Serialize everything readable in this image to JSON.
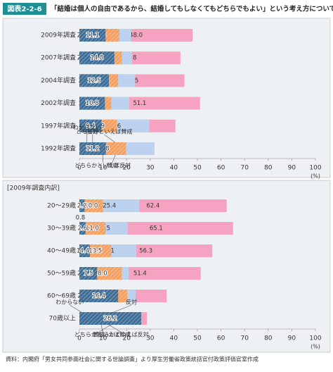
{
  "header": {
    "label": "図表2-2-6",
    "title": "「結婚は個人の自由であるから、結婚してもしなくてもどちらでもよい」という考え方について"
  },
  "source": "資料：内閣府「男女共同参画社会に関する世論調査」より厚生労働省政策統括官付政策評価官室作成",
  "chart_data": [
    {
      "type": "bar",
      "orientation": "horizontal",
      "stacked": true,
      "categories": [
        "2009年調査",
        "2007年調査",
        "2004年調査",
        "2002年調査",
        "1997年調査",
        "1992年調査"
      ],
      "series": [
        {
          "name": "賛成",
          "color": "#f5a3c0",
          "values": [
            48.0,
            42.8,
            44.5,
            51.1,
            40.7,
            30.9
          ],
          "value_labels": [
            "48.0",
            "42.8",
            "44.5",
            "51.1",
            "40.7",
            "30.9"
          ]
        },
        {
          "name": "どちらかといえば賛成",
          "color": "#bcd2ef",
          "values": [
            22.0,
            22.3,
            23.6,
            21.1,
            29.6,
            31.8
          ],
          "value_labels": [
            "22.0",
            "22.3",
            "23.6",
            "21.1",
            "29.6",
            "31.8"
          ]
        },
        {
          "name": "わからない",
          "color": "#7fae5f",
          "values": [
            2.0,
            2.1,
            3.1,
            3.4,
            4.5,
            6.4
          ],
          "value_labels": [
            "2.0",
            "2.1",
            "3.1",
            "3.4",
            "4.5",
            "6.4"
          ]
        },
        {
          "name": "どちらかといえば反対",
          "color": "#f4a063",
          "values": [
            16.9,
            18.0,
            16.4,
            13.5,
            15.9,
            19.8
          ],
          "value_labels": [
            "16.9",
            "18.0",
            "16.4",
            "13.5",
            "15.9",
            "19.8"
          ]
        },
        {
          "name": "反対",
          "color": "#3f6e98",
          "values": [
            11.1,
            14.8,
            12.5,
            10.8,
            9.4,
            11.2
          ],
          "value_labels": [
            "11.1",
            "14.8",
            "12.5",
            "10.8",
            "9.4",
            "11.2"
          ]
        }
      ],
      "xlim": [
        0,
        100
      ],
      "xticks": [
        0,
        10,
        20,
        30,
        40,
        50,
        60,
        70,
        80,
        90,
        100
      ],
      "xlabel": "(%)"
    },
    {
      "type": "bar",
      "orientation": "horizontal",
      "stacked": true,
      "title": "[2009年調査内訳]",
      "categories": [
        "20～29歳",
        "30～39歳",
        "40～49歳",
        "50～59歳",
        "60～69歳",
        "70歳以上"
      ],
      "series": [
        {
          "name": "賛成",
          "color": "#f5a3c0",
          "values": [
            62.4,
            65.1,
            56.3,
            51.4,
            37.0,
            28.6
          ],
          "value_labels": [
            "62.4",
            "65.1",
            "56.3",
            "51.4",
            "37.0",
            "28.6"
          ]
        },
        {
          "name": "どちらかといえば賛成",
          "color": "#bcd2ef",
          "values": [
            25.4,
            20.5,
            24.1,
            20.9,
            23.8,
            18.4
          ],
          "value_labels": [
            "25.4",
            "20.5",
            "24.1",
            "20.9",
            "23.8",
            "18.4"
          ]
        },
        {
          "name": "わからない",
          "color": "#7fae5f",
          "values": [
            null,
            0.8,
            1.7,
            2.3,
            2.4,
            3.7
          ],
          "value_labels": [
            null,
            "0.8",
            "1.7",
            "2.3",
            "2.4",
            "3.7"
          ]
        },
        {
          "name": "どちらかといえば反対",
          "color": "#f4a063",
          "values": [
            10.0,
            11.0,
            13.5,
            18.0,
            20.3,
            23.0
          ],
          "value_labels": [
            "10.0",
            "11.0",
            "13.5",
            "18.0",
            "20.3",
            "23.0"
          ]
        },
        {
          "name": "反対",
          "color": "#3f6e98",
          "values": [
            2.2,
            2.6,
            4.4,
            7.5,
            16.4,
            26.2
          ],
          "value_labels": [
            "2.2",
            "2.6",
            "4.4",
            "7.5",
            "16.4",
            "26.2"
          ]
        }
      ],
      "xlim": [
        0,
        100
      ],
      "xticks": [
        0,
        10,
        20,
        30,
        40,
        50,
        60,
        70,
        80,
        90,
        100
      ],
      "xlabel": "(%)"
    }
  ]
}
